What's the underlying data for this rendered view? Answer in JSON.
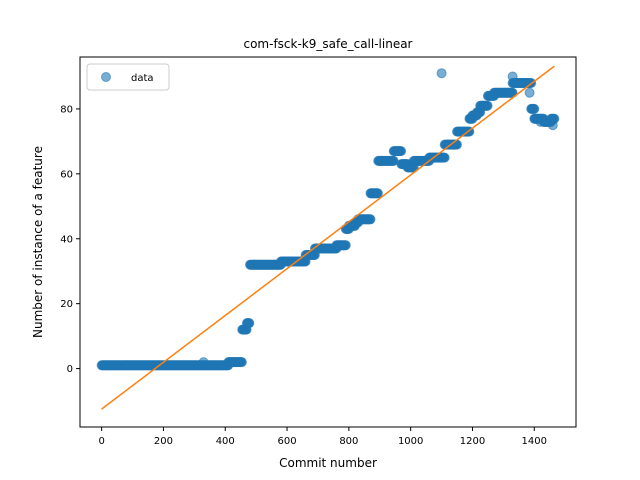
{
  "chart_data": {
    "type": "scatter",
    "title": "com-fsck-k9_safe_call-linear",
    "xlabel": "Commit number",
    "ylabel": "Number of instance of a feature",
    "xlim": [
      -70,
      1535
    ],
    "ylim": [
      -18,
      96
    ],
    "xticks": [
      0,
      200,
      400,
      600,
      800,
      1000,
      1200,
      1400
    ],
    "yticks": [
      0,
      20,
      40,
      60,
      80
    ],
    "legend": {
      "placement": "upper-left",
      "entries": [
        "data"
      ]
    },
    "grid": false,
    "series": [
      {
        "name": "data",
        "kind": "scatter",
        "color": "#1f77b4",
        "alpha": 0.6,
        "segments": [
          {
            "x0": 0,
            "x1": 410,
            "y": 1
          },
          {
            "x0": 410,
            "x1": 455,
            "y": 2
          },
          {
            "x0": 455,
            "x1": 470,
            "y": 12
          },
          {
            "x0": 470,
            "x1": 478,
            "y": 14
          },
          {
            "x0": 480,
            "x1": 580,
            "y": 32
          },
          {
            "x0": 580,
            "x1": 660,
            "y": 33
          },
          {
            "x0": 660,
            "x1": 690,
            "y": 35
          },
          {
            "x0": 690,
            "x1": 760,
            "y": 37
          },
          {
            "x0": 760,
            "x1": 790,
            "y": 38
          },
          {
            "x0": 790,
            "x1": 800,
            "y": 43
          },
          {
            "x0": 800,
            "x1": 820,
            "y": 44
          },
          {
            "x0": 820,
            "x1": 830,
            "y": 45
          },
          {
            "x0": 830,
            "x1": 870,
            "y": 46
          },
          {
            "x0": 870,
            "x1": 895,
            "y": 54
          },
          {
            "x0": 895,
            "x1": 945,
            "y": 64
          },
          {
            "x0": 945,
            "x1": 970,
            "y": 67
          },
          {
            "x0": 970,
            "x1": 990,
            "y": 63
          },
          {
            "x0": 990,
            "x1": 1010,
            "y": 62
          },
          {
            "x0": 1010,
            "x1": 1060,
            "y": 64
          },
          {
            "x0": 1060,
            "x1": 1110,
            "y": 65
          },
          {
            "x0": 1110,
            "x1": 1150,
            "y": 69
          },
          {
            "x0": 1150,
            "x1": 1190,
            "y": 73
          },
          {
            "x0": 1190,
            "x1": 1200,
            "y": 77
          },
          {
            "x0": 1200,
            "x1": 1215,
            "y": 78
          },
          {
            "x0": 1215,
            "x1": 1225,
            "y": 79
          },
          {
            "x0": 1225,
            "x1": 1250,
            "y": 81
          },
          {
            "x0": 1250,
            "x1": 1270,
            "y": 84
          },
          {
            "x0": 1270,
            "x1": 1330,
            "y": 85
          },
          {
            "x0": 1330,
            "x1": 1390,
            "y": 88
          },
          {
            "x0": 1390,
            "x1": 1400,
            "y": 80
          },
          {
            "x0": 1400,
            "x1": 1430,
            "y": 77
          },
          {
            "x0": 1430,
            "x1": 1455,
            "y": 76
          },
          {
            "x0": 1455,
            "x1": 1465,
            "y": 77
          }
        ],
        "points": [
          {
            "x": 330,
            "y": 2
          },
          {
            "x": 1100,
            "y": 91
          },
          {
            "x": 1330,
            "y": 90
          },
          {
            "x": 1385,
            "y": 85
          },
          {
            "x": 1420,
            "y": 76
          },
          {
            "x": 1460,
            "y": 75
          }
        ]
      },
      {
        "name": "",
        "kind": "line",
        "color": "#ff7f0e",
        "x": [
          0,
          1465
        ],
        "y": [
          -12.5,
          93.2
        ]
      }
    ]
  }
}
